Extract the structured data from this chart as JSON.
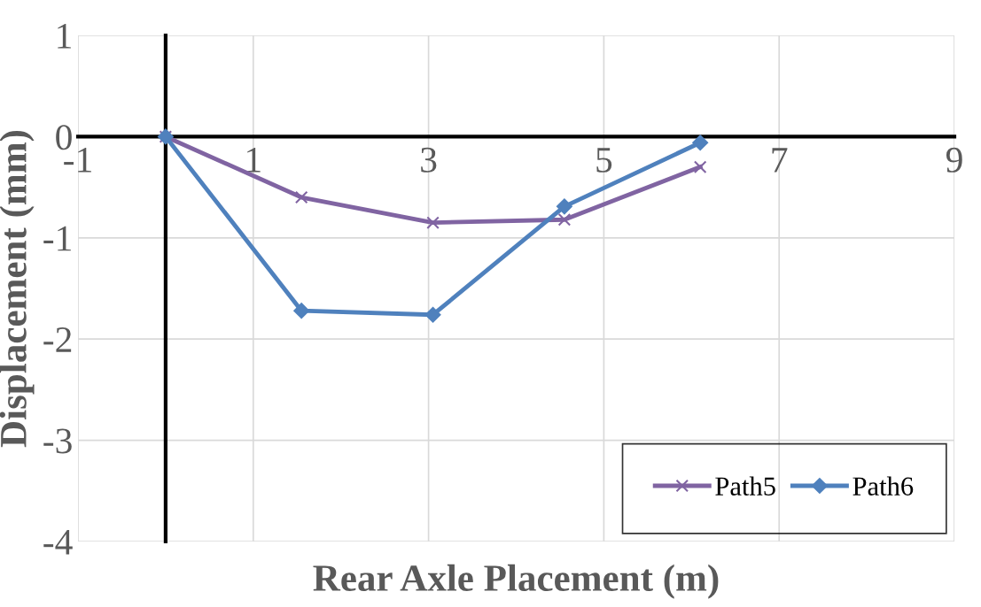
{
  "chart_data": {
    "type": "line",
    "xlabel": "Rear Axle Placement (m)",
    "ylabel": "Displacement (mm)",
    "x": [
      0,
      1.55,
      3.05,
      4.55,
      6.1
    ],
    "series": [
      {
        "name": "Path5",
        "color": "#8064a2",
        "marker": "cross",
        "values": [
          0,
          -0.6,
          -0.85,
          -0.82,
          -0.3
        ]
      },
      {
        "name": "Path6",
        "color": "#4f81bd",
        "marker": "diamond",
        "values": [
          0,
          -1.72,
          -1.76,
          -0.69,
          -0.06
        ]
      }
    ],
    "xlim": [
      -1,
      9
    ],
    "xticks": [
      -1,
      1,
      3,
      5,
      7,
      9
    ],
    "ylim": [
      -4,
      1
    ],
    "yticks": [
      -4,
      -3,
      -2,
      -1,
      0,
      1
    ],
    "grid": true,
    "legend": "bottom right",
    "line_style": "solid"
  }
}
